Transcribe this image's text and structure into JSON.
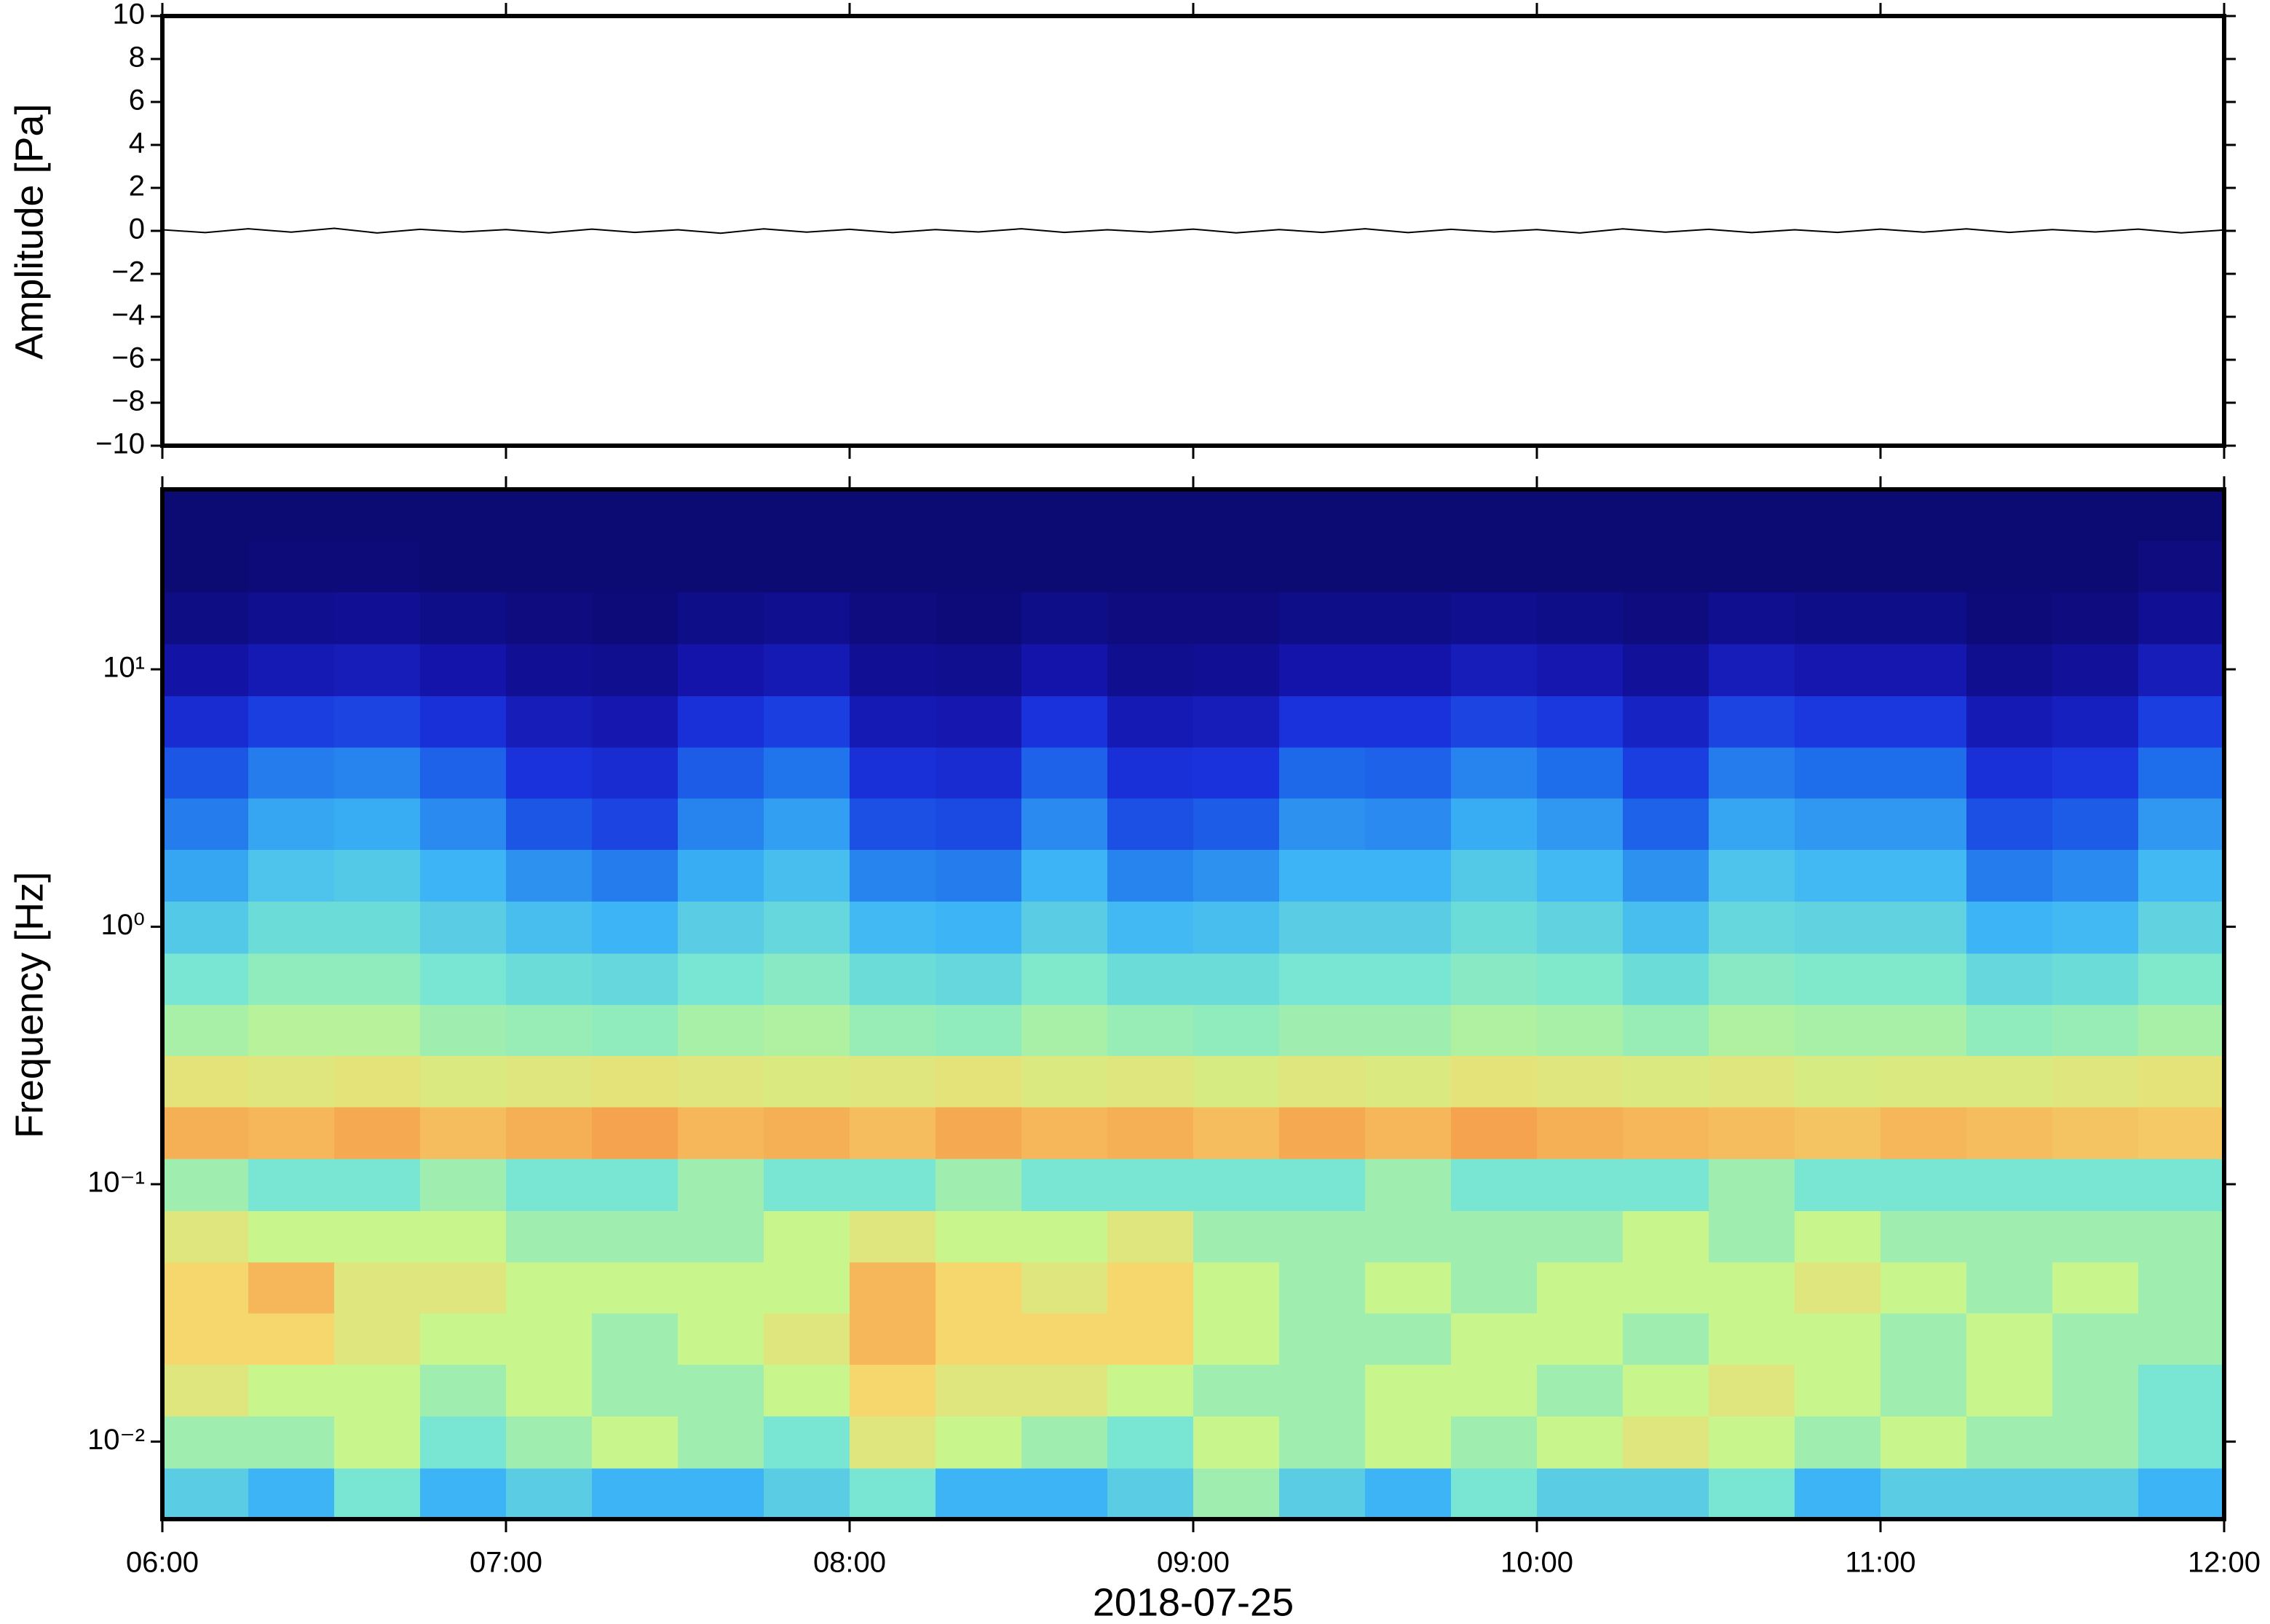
{
  "chart_data": [
    {
      "type": "line",
      "ylabel": "Amplitude [Pa]",
      "color": "#000000",
      "x": [
        6,
        6.125,
        6.25,
        6.375,
        6.5,
        6.625,
        6.75,
        6.875,
        7,
        7.125,
        7.25,
        7.375,
        7.5,
        7.625,
        7.75,
        7.875,
        8,
        8.125,
        8.25,
        8.375,
        8.5,
        8.625,
        8.75,
        8.875,
        9,
        9.125,
        9.25,
        9.375,
        9.5,
        9.625,
        9.75,
        9.875,
        10,
        10.125,
        10.25,
        10.375,
        10.5,
        10.625,
        10.75,
        10.875,
        11,
        11.125,
        11.25,
        11.375,
        11.5,
        11.625,
        11.75,
        11.875,
        12
      ],
      "values": [
        0.05,
        -0.08,
        0.1,
        -0.06,
        0.12,
        -0.1,
        0.07,
        -0.05,
        0.06,
        -0.09,
        0.08,
        -0.07,
        0.05,
        -0.11,
        0.09,
        -0.06,
        0.07,
        -0.08,
        0.06,
        -0.05,
        0.1,
        -0.07,
        0.05,
        -0.06,
        0.08,
        -0.09,
        0.06,
        -0.07,
        0.1,
        -0.08,
        0.07,
        -0.05,
        0.06,
        -0.1,
        0.09,
        -0.06,
        0.07,
        -0.08,
        0.05,
        -0.07,
        0.08,
        -0.06,
        0.09,
        -0.07,
        0.06,
        -0.05,
        0.08,
        -0.09,
        0.04
      ],
      "xlim": [
        6,
        12
      ],
      "xticks": [
        6,
        7,
        8,
        9,
        10,
        11,
        12
      ],
      "ylim": [
        -10,
        10
      ],
      "yticks": [
        {
          "value": -10,
          "label": "−10"
        },
        {
          "value": -8,
          "label": "−8"
        },
        {
          "value": -6,
          "label": "−6"
        },
        {
          "value": -4,
          "label": "−4"
        },
        {
          "value": -2,
          "label": "−2"
        },
        0,
        2,
        4,
        6,
        8,
        10
      ]
    },
    {
      "type": "heatmap",
      "ylabel": "Frequency [Hz]",
      "xlabel": "2018-07-25",
      "log_y": true,
      "xlim": [
        6,
        12
      ],
      "xticks": [
        {
          "value": 6,
          "label": "06:00"
        },
        {
          "value": 7,
          "label": "07:00"
        },
        {
          "value": 8,
          "label": "08:00"
        },
        {
          "value": 9,
          "label": "09:00"
        },
        {
          "value": 10,
          "label": "10:00"
        },
        {
          "value": 11,
          "label": "11:00"
        },
        {
          "value": 12,
          "label": "12:00"
        }
      ],
      "ylim": [
        0.005,
        50
      ],
      "yticks": [
        {
          "value": 0.01,
          "label": "10⁻²"
        },
        {
          "value": 0.1,
          "label": "10⁻¹"
        },
        {
          "value": 1,
          "label": "10⁰"
        },
        {
          "value": 10,
          "label": "10¹"
        }
      ],
      "xbins": [
        6,
        6.25,
        6.5,
        6.75,
        7,
        7.25,
        7.5,
        7.75,
        8,
        8.25,
        8.5,
        8.75,
        9,
        9.25,
        9.5,
        9.75,
        10,
        10.25,
        10.5,
        10.75,
        11,
        11.25,
        11.5,
        11.75,
        12
      ],
      "ybins": [
        0.005,
        0.0079,
        0.0126,
        0.02,
        0.0316,
        0.05,
        0.079,
        0.126,
        0.2,
        0.316,
        0.5,
        0.79,
        1.26,
        2,
        3.16,
        5,
        7.9,
        12.6,
        20,
        31.6,
        50
      ],
      "zlim": [
        0,
        10
      ],
      "colorscale": [
        "#0c0a73",
        "#1414aa",
        "#1932dc",
        "#1e6eeb",
        "#3cb4f5",
        "#78e6d2",
        "#c8f58c",
        "#f5d76e",
        "#f59646",
        "#dc5a32",
        "#c8281e"
      ],
      "z": [
        [
          4.5,
          4,
          5,
          4,
          4.5,
          4,
          4,
          4.5,
          5,
          4,
          4,
          4.5,
          5.5,
          4.5,
          4,
          5,
          4.5,
          4.5,
          5,
          4,
          4.5,
          4.5,
          4.5,
          4
        ],
        [
          5.5,
          5.5,
          6,
          5,
          5.5,
          6,
          5.5,
          5,
          6.5,
          6,
          5.5,
          5,
          6,
          5.5,
          6,
          5.5,
          6,
          6.5,
          6,
          5.5,
          6,
          5.5,
          5.5,
          5
        ],
        [
          6.5,
          6,
          6,
          5.5,
          6,
          5.5,
          5.5,
          6,
          7,
          6.5,
          6.5,
          6,
          5.5,
          5.5,
          6,
          6,
          5.5,
          6,
          6.5,
          6,
          5.5,
          6,
          5.5,
          5
        ],
        [
          7,
          7,
          6.5,
          6,
          6,
          5.5,
          6,
          6.5,
          7.5,
          7,
          7,
          7,
          6,
          5.5,
          5.5,
          6,
          6,
          5.5,
          6,
          6,
          5.5,
          6,
          5.5,
          5.5
        ],
        [
          7,
          7.5,
          6.5,
          6.5,
          6,
          6,
          6,
          6,
          7.5,
          7,
          6.5,
          7,
          6,
          5.5,
          6,
          5.5,
          6,
          6,
          6,
          6.5,
          6,
          5.5,
          6,
          5.5
        ],
        [
          6.5,
          6,
          6,
          6,
          5.5,
          5.5,
          5.5,
          6,
          6.5,
          6,
          6,
          6.5,
          5.5,
          5.5,
          5.5,
          5.5,
          5.5,
          6,
          5.5,
          6,
          5.5,
          5.5,
          5.5,
          5.5
        ],
        [
          5.5,
          5,
          5,
          5.5,
          5,
          5,
          5.5,
          5,
          5,
          5.5,
          5,
          5,
          5,
          5,
          5.5,
          5,
          5,
          5,
          5.5,
          5,
          5,
          5,
          5,
          5
        ],
        [
          7.6,
          7.5,
          7.7,
          7.4,
          7.6,
          7.8,
          7.5,
          7.6,
          7.4,
          7.7,
          7.5,
          7.6,
          7.4,
          7.7,
          7.5,
          7.8,
          7.6,
          7.5,
          7.4,
          7.3,
          7.5,
          7.4,
          7.3,
          7.2
        ],
        [
          6.6,
          6.5,
          6.6,
          6.4,
          6.5,
          6.6,
          6.5,
          6.4,
          6.5,
          6.6,
          6.4,
          6.5,
          6.3,
          6.5,
          6.4,
          6.6,
          6.5,
          6.4,
          6.5,
          6.3,
          6.4,
          6.4,
          6.5,
          6.6
        ],
        [
          5.6,
          5.8,
          5.8,
          5.5,
          5.4,
          5.3,
          5.6,
          5.7,
          5.4,
          5.3,
          5.6,
          5.4,
          5.3,
          5.5,
          5.5,
          5.7,
          5.6,
          5.4,
          5.7,
          5.6,
          5.6,
          5.3,
          5.4,
          5.6
        ],
        [
          5,
          5.3,
          5.3,
          5,
          4.8,
          4.7,
          5,
          5.2,
          4.8,
          4.7,
          5.1,
          4.8,
          4.8,
          5,
          5,
          5.2,
          5.1,
          4.8,
          5.2,
          5.1,
          5.1,
          4.7,
          4.8,
          5.1
        ],
        [
          4.4,
          4.8,
          4.8,
          4.5,
          4.2,
          4,
          4.5,
          4.7,
          4.1,
          4,
          4.5,
          4.1,
          4.2,
          4.5,
          4.5,
          4.8,
          4.6,
          4.2,
          4.7,
          4.6,
          4.6,
          4,
          4.1,
          4.6
        ],
        [
          3.8,
          4.3,
          4.4,
          4,
          3.5,
          3.2,
          3.9,
          4.2,
          3.3,
          3.2,
          4,
          3.3,
          3.5,
          4,
          4,
          4.4,
          4.1,
          3.5,
          4.3,
          4.1,
          4.1,
          3.2,
          3.4,
          4.1
        ],
        [
          3.2,
          3.8,
          3.9,
          3.4,
          2.6,
          2.3,
          3.3,
          3.7,
          2.5,
          2.4,
          3.4,
          2.5,
          2.7,
          3.5,
          3.4,
          3.9,
          3.6,
          2.8,
          3.8,
          3.6,
          3.6,
          2.5,
          2.7,
          3.6
        ],
        [
          2.6,
          3.2,
          3.3,
          2.8,
          2,
          1.8,
          2.7,
          3.1,
          1.9,
          1.8,
          2.8,
          1.9,
          2,
          2.9,
          2.8,
          3.3,
          3,
          2.2,
          3.2,
          3,
          3,
          1.9,
          2.1,
          3
        ],
        [
          1.8,
          2.2,
          2.3,
          1.9,
          1.3,
          1.1,
          1.9,
          2.2,
          1.2,
          1.1,
          2,
          1.2,
          1.3,
          2,
          2,
          2.3,
          2.1,
          1.5,
          2.3,
          2.1,
          2.1,
          1.2,
          1.4,
          2.2
        ],
        [
          0.9,
          1.2,
          1.3,
          1,
          0.6,
          0.5,
          1,
          1.2,
          0.6,
          0.5,
          1,
          0.5,
          0.6,
          1,
          1,
          1.3,
          1.1,
          0.7,
          1.3,
          1.1,
          1.1,
          0.5,
          0.7,
          1.3
        ],
        [
          0.3,
          0.5,
          0.6,
          0.4,
          0.2,
          0.1,
          0.4,
          0.5,
          0.2,
          0.1,
          0.4,
          0.2,
          0.2,
          0.4,
          0.4,
          0.5,
          0.4,
          0.2,
          0.5,
          0.4,
          0.4,
          0.1,
          0.2,
          0.6
        ],
        [
          0,
          0.1,
          0.1,
          0,
          0,
          0,
          0,
          0,
          0,
          0,
          0,
          0,
          0,
          0,
          0,
          0,
          0,
          0,
          0,
          0,
          0,
          0,
          0,
          0.2
        ],
        [
          0,
          0,
          0,
          0,
          0,
          0,
          0,
          0,
          0,
          0,
          0,
          0,
          0,
          0,
          0,
          0,
          0,
          0,
          0,
          0,
          0,
          0,
          0,
          0
        ]
      ]
    }
  ]
}
